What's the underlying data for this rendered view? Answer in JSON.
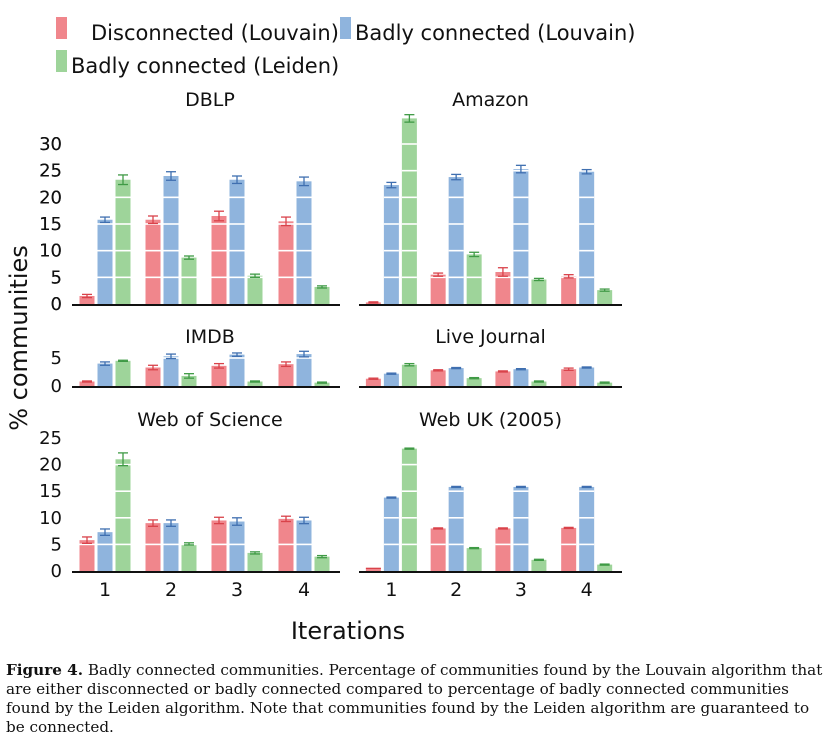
{
  "chart_data": {
    "type": "bar",
    "legend": [
      {
        "label": "Disconnected (Louvain)",
        "color": "#f0868c"
      },
      {
        "label": "Badly connected (Louvain)",
        "color": "#8fb4dd"
      },
      {
        "label": "Badly connected (Leiden)",
        "color": "#9ed49a"
      }
    ],
    "colors": [
      "#f0868c",
      "#8fb4dd",
      "#9ed49a"
    ],
    "error_colors": [
      "#d9424a",
      "#3f6fb0",
      "#3f9a45"
    ],
    "xlabel": "Iterations",
    "ylabel": "% communities",
    "categories": [
      "1",
      "2",
      "3",
      "4"
    ],
    "panels": [
      {
        "title": "DBLP",
        "ylim": [
          0,
          35
        ],
        "yticks": [
          0,
          5,
          10,
          15,
          20,
          25,
          30
        ],
        "series": [
          {
            "values": [
              1.5,
              15.8,
              16.5,
              15.5
            ],
            "err": [
              0.3,
              0.7,
              0.9,
              0.8
            ]
          },
          {
            "values": [
              15.8,
              24.0,
              23.3,
              23.0
            ],
            "err": [
              0.5,
              0.8,
              0.7,
              0.8
            ]
          },
          {
            "values": [
              23.3,
              8.7,
              5.3,
              3.2
            ],
            "err": [
              0.9,
              0.3,
              0.3,
              0.2
            ]
          }
        ]
      },
      {
        "title": "Amazon",
        "ylim": [
          0,
          35
        ],
        "yticks": [
          0,
          5,
          10,
          15,
          20,
          25,
          30
        ],
        "series": [
          {
            "values": [
              0.3,
              5.5,
              6.0,
              5.2
            ],
            "err": [
              0.1,
              0.3,
              0.8,
              0.3
            ]
          },
          {
            "values": [
              22.3,
              23.8,
              25.3,
              24.8
            ],
            "err": [
              0.5,
              0.5,
              0.7,
              0.4
            ]
          },
          {
            "values": [
              34.8,
              9.3,
              4.6,
              2.6
            ],
            "err": [
              0.7,
              0.4,
              0.2,
              0.2
            ]
          }
        ]
      },
      {
        "title": "IMDB",
        "ylim": [
          0,
          7
        ],
        "yticks": [
          0,
          5
        ],
        "series": [
          {
            "values": [
              0.8,
              3.3,
              3.6,
              3.9
            ],
            "err": [
              0.1,
              0.4,
              0.4,
              0.4
            ]
          },
          {
            "values": [
              4.0,
              5.3,
              5.6,
              5.7
            ],
            "err": [
              0.3,
              0.4,
              0.3,
              0.5
            ]
          },
          {
            "values": [
              4.5,
              1.8,
              0.8,
              0.6
            ],
            "err": [
              0.1,
              0.4,
              0.1,
              0.1
            ]
          }
        ]
      },
      {
        "title": "Live Journal",
        "ylim": [
          0,
          7
        ],
        "yticks": [],
        "series": [
          {
            "values": [
              1.3,
              2.8,
              2.6,
              3.0
            ],
            "err": [
              0.1,
              0.1,
              0.1,
              0.2
            ]
          },
          {
            "values": [
              2.2,
              3.2,
              3.0,
              3.3
            ],
            "err": [
              0.1,
              0.1,
              0.1,
              0.1
            ]
          },
          {
            "values": [
              3.8,
              1.4,
              0.8,
              0.6
            ],
            "err": [
              0.2,
              0.1,
              0.1,
              0.1
            ]
          }
        ]
      },
      {
        "title": "Web of Science",
        "ylim": [
          0,
          25
        ],
        "yticks": [
          0,
          5,
          10,
          15,
          20,
          25
        ],
        "series": [
          {
            "values": [
              5.8,
              9.0,
              9.5,
              9.8
            ],
            "err": [
              0.6,
              0.6,
              0.6,
              0.5
            ]
          },
          {
            "values": [
              7.3,
              9.0,
              9.3,
              9.5
            ],
            "err": [
              0.6,
              0.6,
              0.7,
              0.6
            ]
          },
          {
            "values": [
              21.0,
              5.1,
              3.4,
              2.7
            ],
            "err": [
              1.2,
              0.2,
              0.2,
              0.2
            ]
          }
        ]
      },
      {
        "title": "Web UK (2005)",
        "ylim": [
          0,
          25
        ],
        "yticks": [],
        "series": [
          {
            "values": [
              0.5,
              8.0,
              8.0,
              8.1
            ],
            "err": [
              0.0,
              0.1,
              0.1,
              0.1
            ]
          },
          {
            "values": [
              13.8,
              15.8,
              15.8,
              15.8
            ],
            "err": [
              0.1,
              0.1,
              0.1,
              0.1
            ]
          },
          {
            "values": [
              23.0,
              4.3,
              2.1,
              1.2
            ],
            "err": [
              0.1,
              0.1,
              0.1,
              0.1
            ]
          }
        ]
      }
    ]
  },
  "caption": {
    "label": "Figure 4.",
    "text": " Badly connected communities. Percentage of communities found by the Louvain algorithm that are either disconnected or badly connected compared to percentage of badly connected communities found by the Leiden algorithm. Note that communities found by the Leiden algorithm are guaranteed to be connected."
  }
}
